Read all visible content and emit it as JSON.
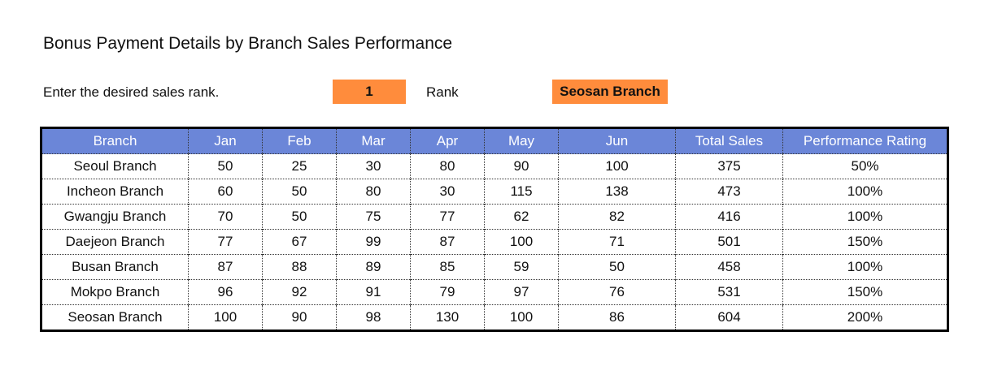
{
  "header": {
    "title": "Bonus Payment Details by Branch Sales Performance"
  },
  "rank_input": {
    "label": "Enter the desired sales rank.",
    "value": 1,
    "unit_label": "Rank",
    "result": "Seosan Branch"
  },
  "table": {
    "columns": [
      "Branch",
      "Jan",
      "Feb",
      "Mar",
      "Apr",
      "May",
      "Jun",
      "Total Sales",
      "Performance Rating"
    ],
    "rows": [
      [
        "Seoul Branch",
        50,
        25,
        30,
        80,
        90,
        100,
        375,
        "50%"
      ],
      [
        "Incheon Branch",
        60,
        50,
        80,
        30,
        115,
        138,
        473,
        "100%"
      ],
      [
        "Gwangju Branch",
        70,
        50,
        75,
        77,
        62,
        82,
        416,
        "100%"
      ],
      [
        "Daejeon Branch",
        77,
        67,
        99,
        87,
        100,
        71,
        501,
        "150%"
      ],
      [
        "Busan Branch",
        87,
        88,
        89,
        85,
        59,
        50,
        458,
        "100%"
      ],
      [
        "Mokpo Branch",
        96,
        92,
        91,
        79,
        97,
        76,
        531,
        "150%"
      ],
      [
        "Seosan Branch",
        100,
        90,
        98,
        130,
        100,
        86,
        604,
        "200%"
      ]
    ]
  }
}
